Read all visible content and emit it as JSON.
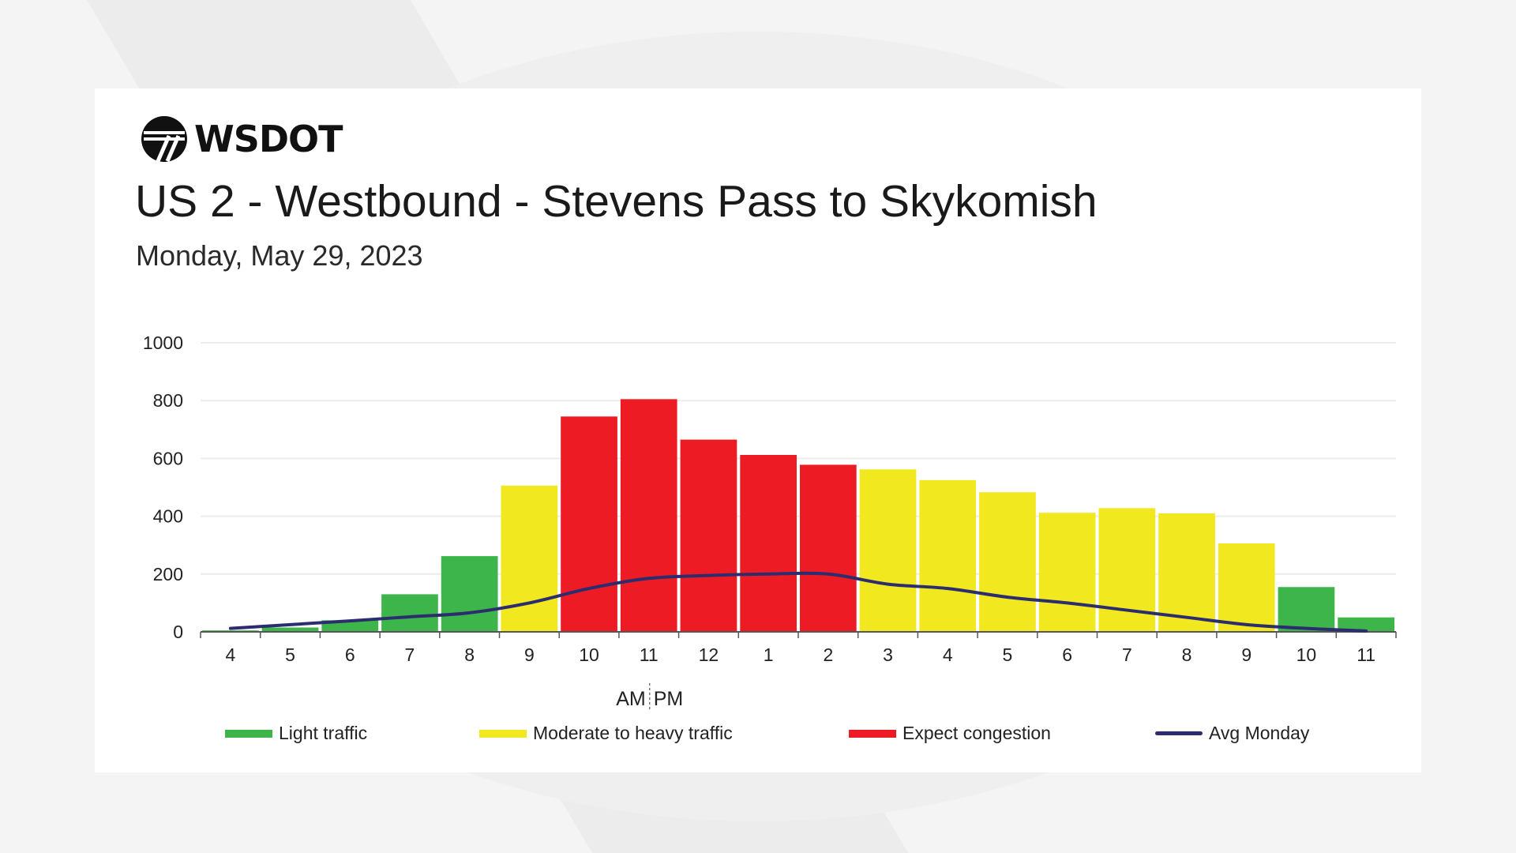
{
  "brand": {
    "name": "WSDOT",
    "icon": "wsdot-logo-icon"
  },
  "header": {
    "title": "US 2 - Westbound - Stevens Pass to Skykomish",
    "date": "Monday, May 29, 2023"
  },
  "colors": {
    "light": "#3db54a",
    "moderate": "#f2e820",
    "congestion": "#ed1c24",
    "avg": "#2b2d6e",
    "grid": "#ececec"
  },
  "chart_data": {
    "type": "bar",
    "categories": [
      "4",
      "5",
      "6",
      "7",
      "8",
      "9",
      "10",
      "11",
      "12",
      "1",
      "2",
      "3",
      "4",
      "5",
      "6",
      "7",
      "8",
      "9",
      "10",
      "11"
    ],
    "values": [
      5,
      15,
      40,
      130,
      262,
      506,
      745,
      805,
      665,
      612,
      578,
      562,
      525,
      483,
      412,
      428,
      410,
      306,
      155,
      50
    ],
    "levels": [
      "light",
      "light",
      "light",
      "light",
      "light",
      "moderate",
      "congestion",
      "congestion",
      "congestion",
      "congestion",
      "congestion",
      "moderate",
      "moderate",
      "moderate",
      "moderate",
      "moderate",
      "moderate",
      "moderate",
      "light",
      "light"
    ],
    "series": [
      {
        "name": "Avg Monday",
        "type": "line",
        "values": [
          12,
          25,
          38,
          52,
          66,
          100,
          150,
          185,
          195,
          200,
          200,
          165,
          150,
          120,
          100,
          75,
          50,
          25,
          12,
          3
        ]
      }
    ],
    "ylim": [
      0,
      1000
    ],
    "yticks": [
      0,
      200,
      400,
      600,
      800,
      1000
    ],
    "am_label": "AM",
    "pm_label": "PM",
    "grid": true,
    "legend": {
      "position": "bottom",
      "items": [
        {
          "key": "light",
          "label": "Light traffic"
        },
        {
          "key": "moderate",
          "label": "Moderate to heavy traffic"
        },
        {
          "key": "congestion",
          "label": "Expect congestion"
        },
        {
          "key": "avg",
          "label": "Avg Monday"
        }
      ]
    }
  }
}
